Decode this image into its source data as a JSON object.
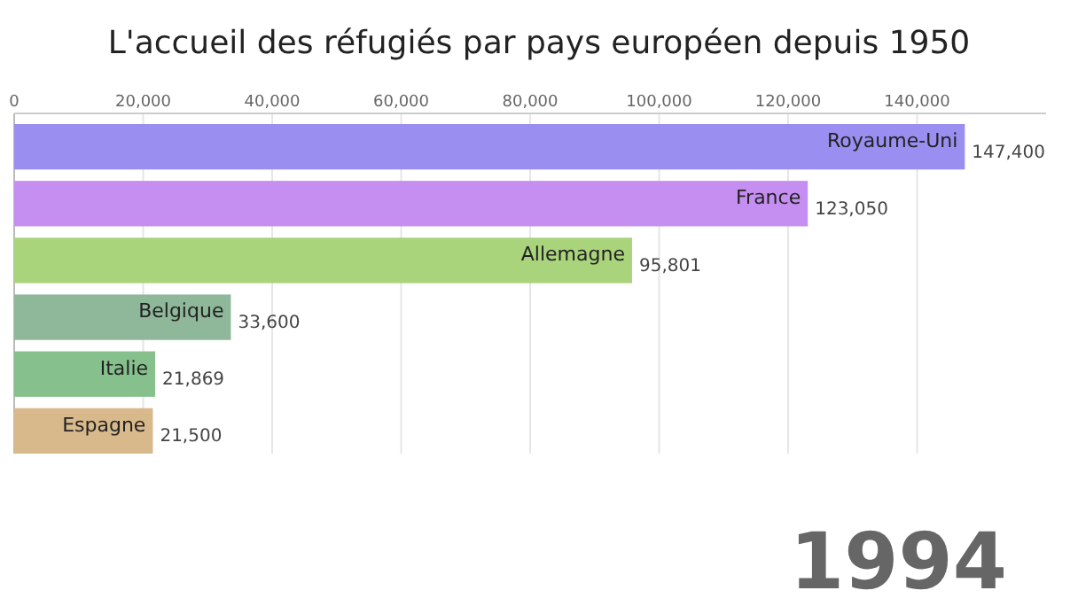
{
  "chart_data": {
    "type": "bar",
    "orientation": "horizontal",
    "title": "L'accueil des réfugiés par pays européen depuis 1950",
    "categories": [
      "Royaume-Uni",
      "France",
      "Allemagne",
      "Belgique",
      "Italie",
      "Espagne"
    ],
    "values": [
      147400,
      123050,
      95801,
      33600,
      21869,
      21500
    ],
    "colors": [
      "#9a8ff0",
      "#c48ff0",
      "#a9d47c",
      "#8fb89a",
      "#86c08c",
      "#d8b98c"
    ],
    "value_labels": [
      "147,400",
      "123,050",
      "95,801",
      "33,600",
      "21,869",
      "21,500"
    ],
    "xlim": [
      0,
      160000
    ],
    "xticks": [
      {
        "value": 0,
        "label": "0"
      },
      {
        "value": 20000,
        "label": "20,000"
      },
      {
        "value": 40000,
        "label": "40,000"
      },
      {
        "value": 60000,
        "label": "60,000"
      },
      {
        "value": 80000,
        "label": "80,000"
      },
      {
        "value": 100000,
        "label": "100,000"
      },
      {
        "value": 120000,
        "label": "120,000"
      },
      {
        "value": 140000,
        "label": "140,000"
      }
    ],
    "grid": "x",
    "annotations": [
      "1994"
    ]
  }
}
